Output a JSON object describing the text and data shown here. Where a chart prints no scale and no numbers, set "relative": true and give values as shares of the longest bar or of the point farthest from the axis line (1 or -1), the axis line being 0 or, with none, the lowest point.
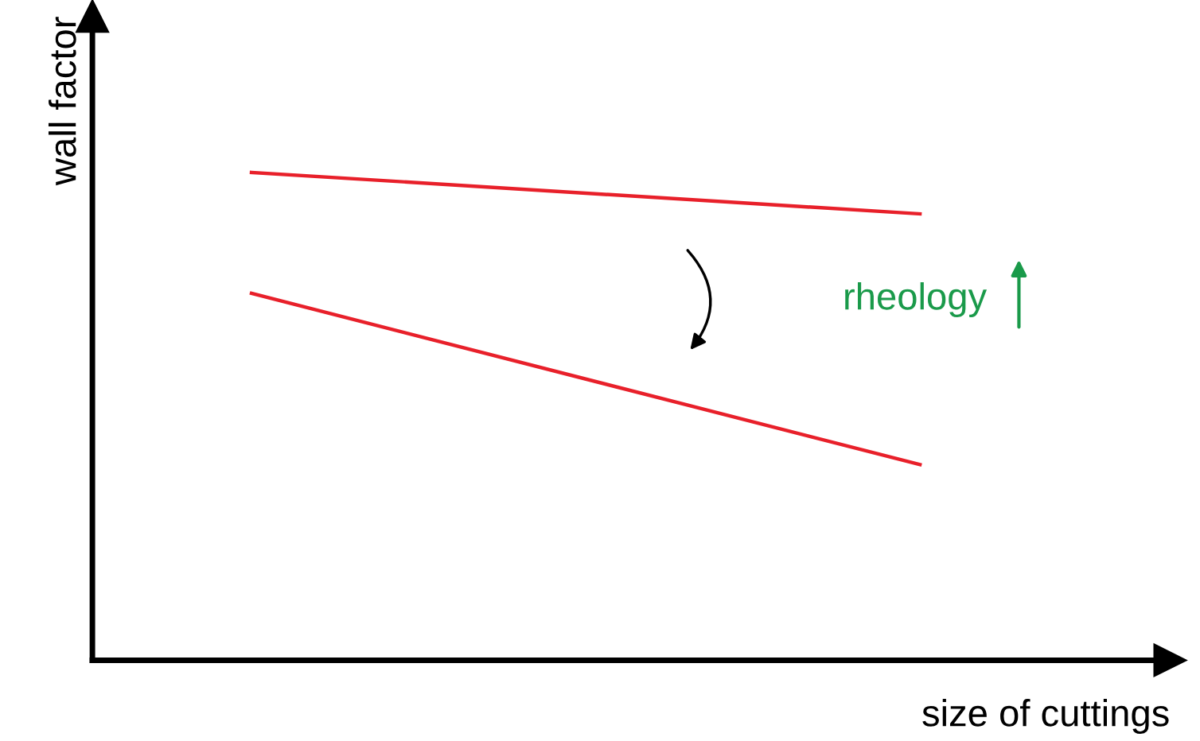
{
  "chart_data": {
    "type": "line",
    "relative": true,
    "xlabel": "size of cuttings",
    "ylabel": "wall factor",
    "categories": [
      null,
      null
    ],
    "series": [
      {
        "color": "#e8202a",
        "values": [
          1,
          0.915
        ]
      },
      {
        "color": "#e8202a",
        "values": [
          0.752,
          0.401
        ]
      }
    ],
    "annotations": [
      "rheology"
    ],
    "grid": false,
    "legend": false,
    "marker": "none",
    "line_style": "solid"
  }
}
